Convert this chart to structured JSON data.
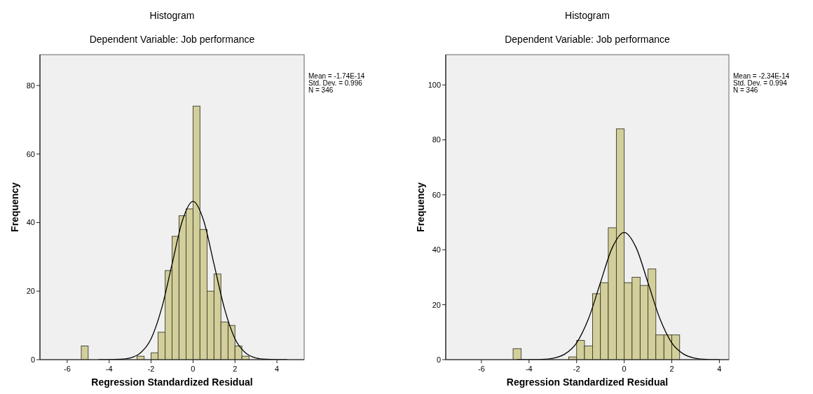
{
  "chart_data": [
    {
      "type": "histogram",
      "title": "Histogram",
      "subtitle": "Dependent Variable: Job performance",
      "xlabel": "Regression Standardized Residual",
      "ylabel": "Frequency",
      "annotations": [
        "Mean = -1.74E-14",
        "Std. Dev. = 0.996",
        "N = 346"
      ],
      "xlim": [
        -7.3,
        5.3
      ],
      "xticks": [
        -6,
        -4,
        -2,
        0,
        2,
        4
      ],
      "ylim": [
        0,
        89
      ],
      "yticks": [
        0,
        20,
        40,
        60,
        80
      ],
      "grid": false,
      "series": [
        {
          "type": "histogram",
          "color": "#d3cf9b",
          "bins": [
            -5.33,
            -5,
            -4.67,
            -4.33,
            -4,
            -3.67,
            -3.33,
            -3,
            -2.67,
            -2.33,
            -2,
            -1.67,
            -1.33,
            -1,
            -0.67,
            -0.33,
            0,
            0.33,
            0.67,
            1,
            1.33,
            1.67,
            2,
            2.33,
            2.67
          ],
          "values": [
            4,
            0,
            0,
            0,
            0,
            0,
            0,
            0,
            1,
            0,
            2,
            8,
            26,
            36,
            42,
            44,
            74,
            38,
            20,
            25,
            11,
            10,
            4,
            1
          ]
        },
        {
          "type": "line",
          "color": "#000000",
          "x": [
            -4.5,
            -4,
            -3.5,
            -3,
            -2.5,
            -2,
            -1.5,
            -1,
            -0.5,
            0,
            0.5,
            1,
            1.5,
            2,
            2.5,
            3,
            3.5,
            4,
            4.5
          ],
          "values": [
            0,
            0,
            0.1,
            0.5,
            2,
            6.1,
            14.9,
            27.9,
            40.7,
            46.2,
            40.7,
            27.9,
            14.9,
            6.1,
            2,
            0.5,
            0.1,
            0,
            0
          ]
        }
      ]
    },
    {
      "type": "histogram",
      "title": "Histogram",
      "subtitle": "Dependent Variable: Job performance",
      "xlabel": "Regression Standardized Residual",
      "ylabel": "Frequency",
      "annotations": [
        "Mean = -2.34E-14",
        "Std. Dev. = 0.994",
        "N = 346"
      ],
      "xlim": [
        -7.5,
        4.4
      ],
      "xticks": [
        -6,
        -4,
        -2,
        0,
        2,
        4
      ],
      "ylim": [
        0,
        111
      ],
      "yticks": [
        0,
        20,
        40,
        60,
        80,
        100
      ],
      "grid": false,
      "series": [
        {
          "type": "histogram",
          "color": "#d3cf9b",
          "bins": [
            -4.67,
            -4.33,
            -4,
            -3.67,
            -3.33,
            -3,
            -2.67,
            -2.33,
            -2,
            -1.67,
            -1.33,
            -1,
            -0.67,
            -0.33,
            0,
            0.33,
            0.67,
            1,
            1.33,
            1.67,
            2,
            2.33
          ],
          "values": [
            4,
            0,
            0,
            0,
            0,
            0,
            0,
            1,
            7,
            5,
            24,
            28,
            48,
            84,
            28,
            30,
            27,
            33,
            9,
            9,
            9
          ]
        },
        {
          "type": "line",
          "color": "#000000",
          "x": [
            -4.5,
            -4,
            -3.5,
            -3,
            -2.5,
            -2,
            -1.5,
            -1,
            -0.5,
            0,
            0.5,
            1,
            1.5,
            2,
            2.5,
            3,
            3.5,
            4
          ],
          "values": [
            0,
            0,
            0.1,
            0.5,
            2,
            6.1,
            14.9,
            28,
            40.8,
            46.3,
            40.8,
            28,
            14.9,
            6.1,
            2,
            0.5,
            0.1,
            0
          ]
        }
      ]
    }
  ]
}
